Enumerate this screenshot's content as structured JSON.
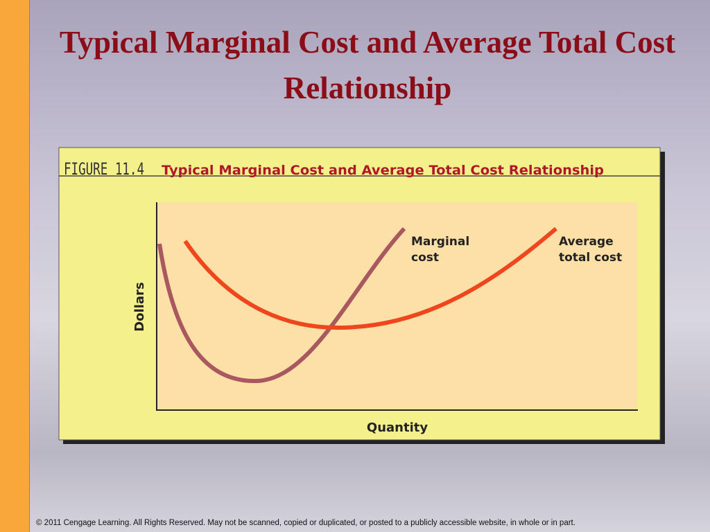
{
  "slide": {
    "title": "Typical Marginal Cost and Average Total Cost Relationship"
  },
  "figure": {
    "label": "FIGURE 11.4",
    "title": "Typical Marginal Cost and Average Total Cost Relationship",
    "y_axis": "Dollars",
    "x_axis": "Quantity",
    "curves": [
      {
        "label": [
          "Marginal",
          "cost"
        ]
      },
      {
        "label": [
          "Average",
          "total cost"
        ]
      }
    ]
  },
  "footer": "© 2011 Cengage Learning. All Rights Reserved. May not be scanned, copied or duplicated, or posted to a publicly accessible website, in whole or in part."
}
